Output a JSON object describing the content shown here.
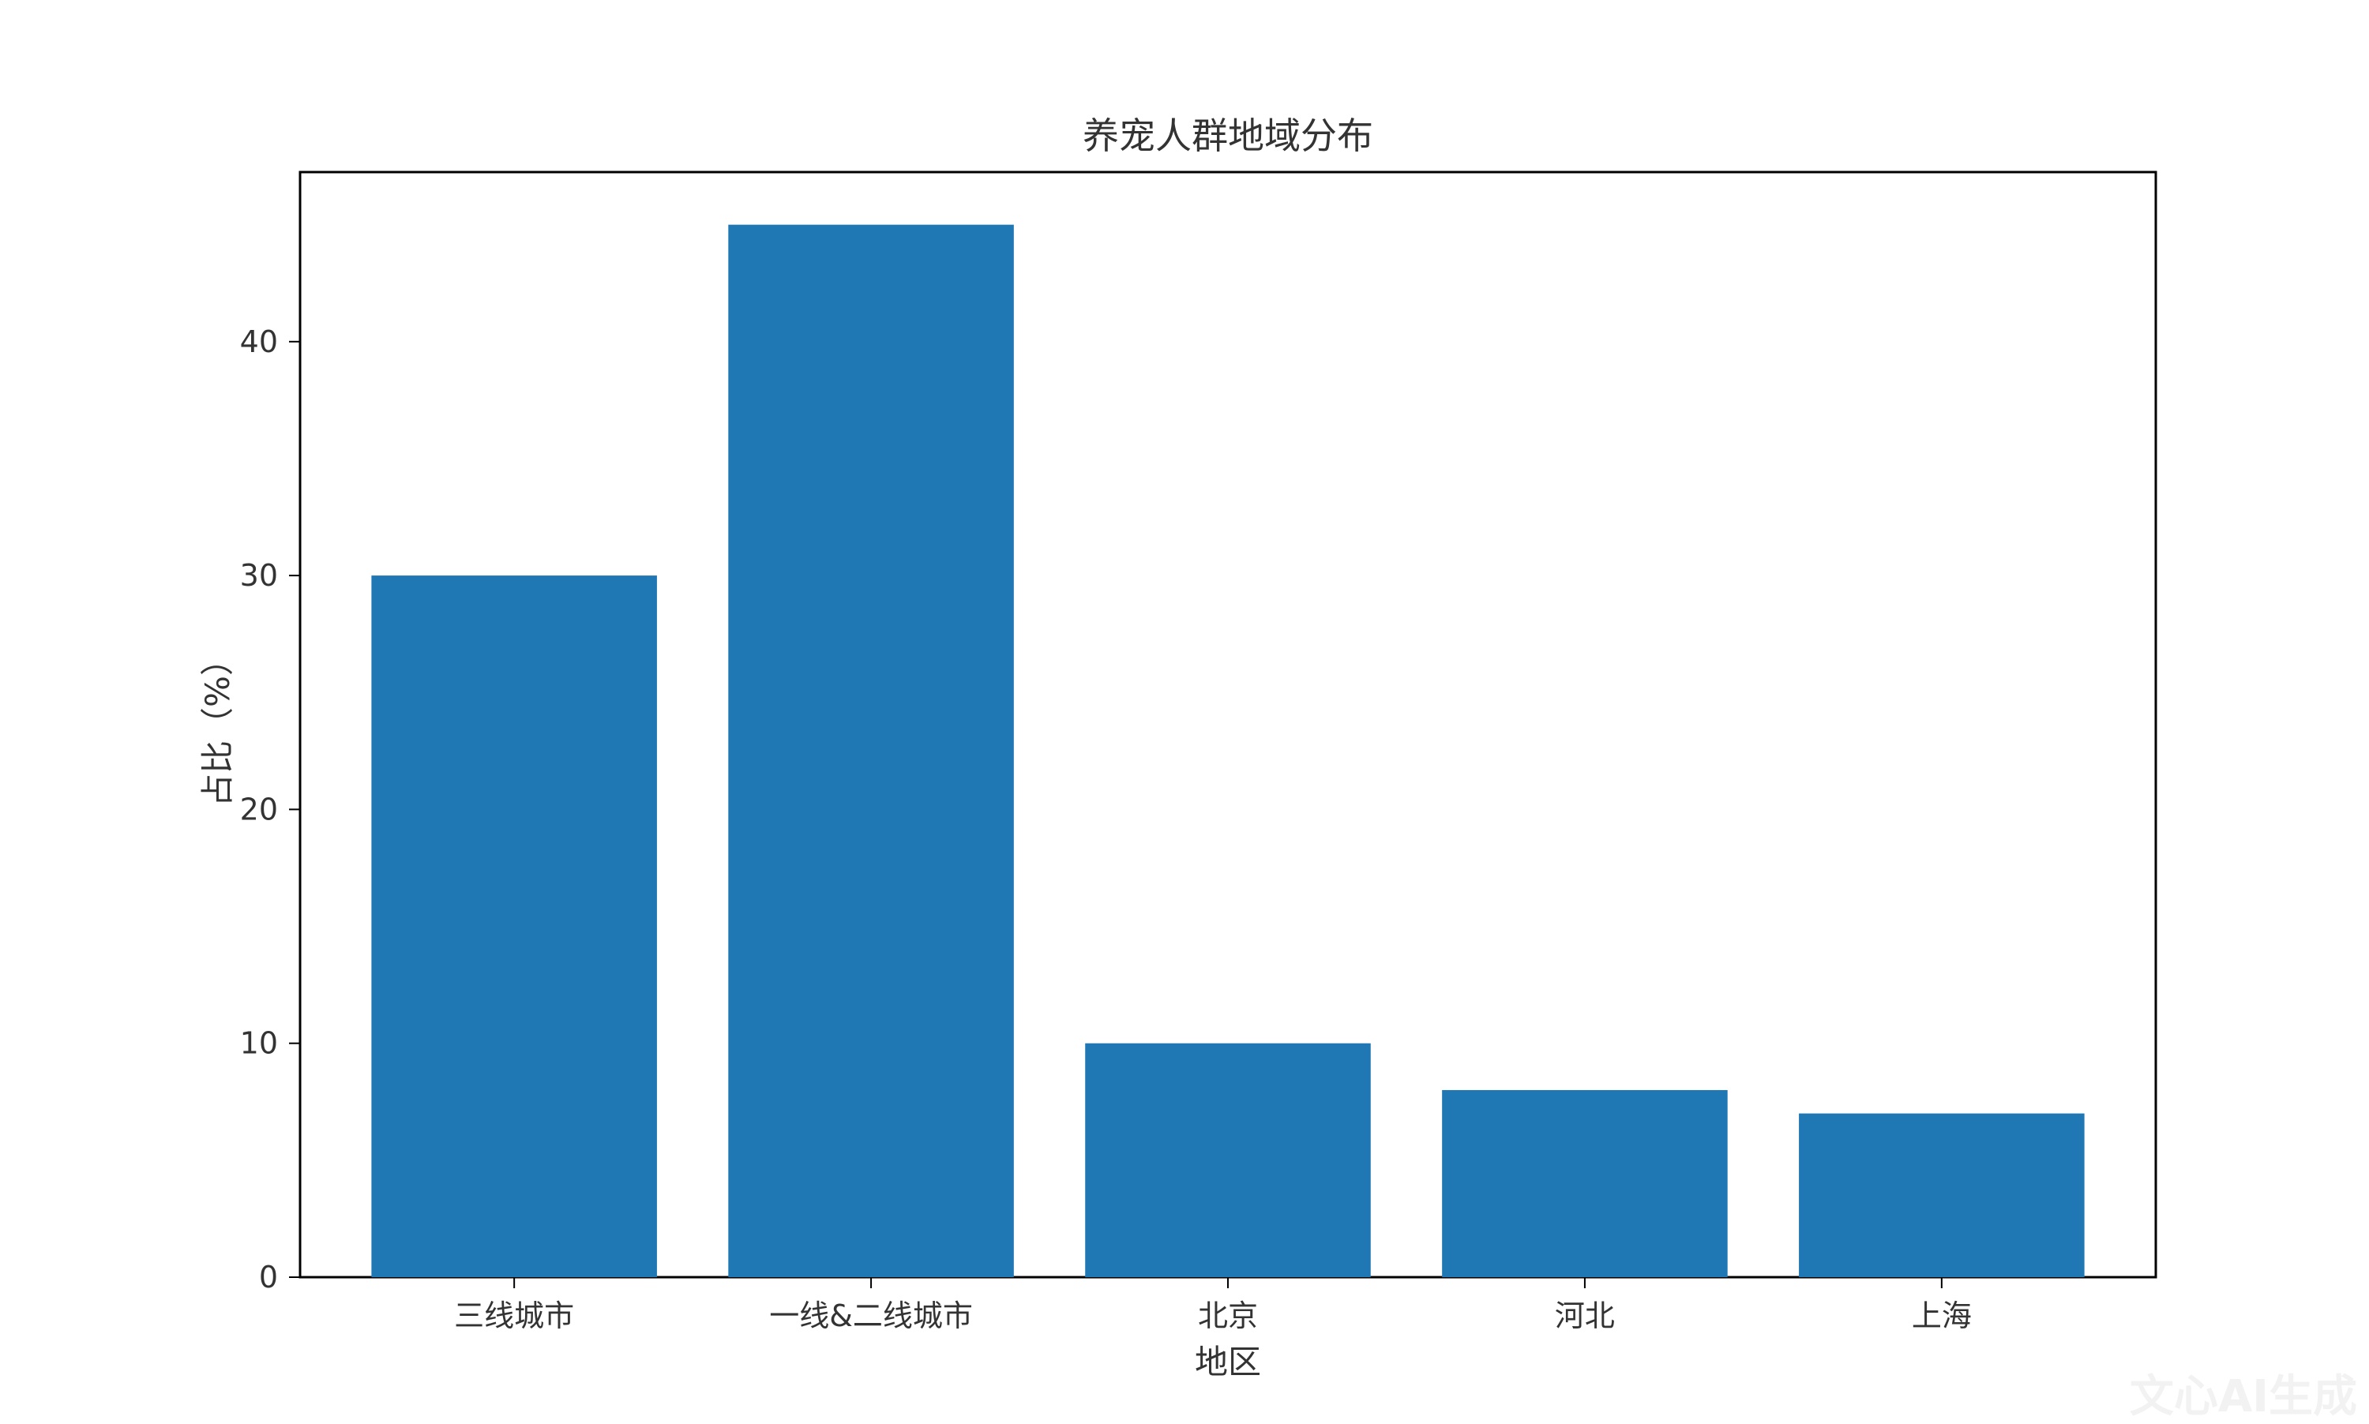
{
  "chart_data": {
    "type": "bar",
    "title": "养宠人群地域分布",
    "xlabel": "地区",
    "ylabel": "占比（%）",
    "categories": [
      "三线城市",
      "一线&二线城市",
      "北京",
      "河北",
      "上海"
    ],
    "values": [
      30,
      45,
      10,
      8,
      7
    ],
    "ylim": [
      0,
      47.25
    ],
    "yticks": [
      0,
      10,
      20,
      30,
      40
    ],
    "grid": false,
    "bar_color": "#1f77b4"
  },
  "watermark": "文心AI生成"
}
